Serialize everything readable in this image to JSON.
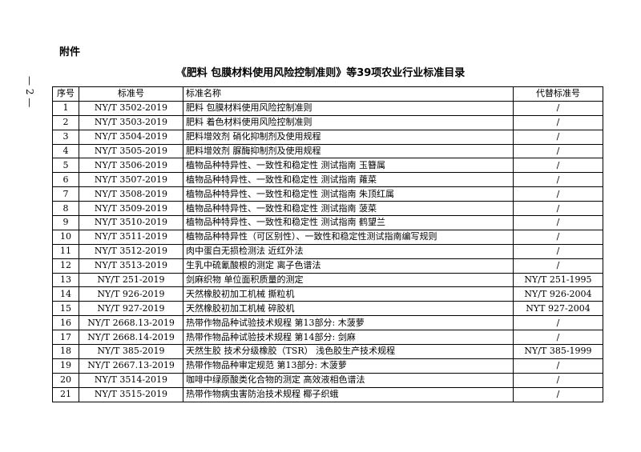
{
  "page_number": "— 2 —",
  "header": {
    "label": "附件",
    "title": "《肥料 包膜材料使用风险控制准则》等39项农业行业标准目录"
  },
  "table": {
    "columns": [
      "序号",
      "标准号",
      "标准名称",
      "代替标准号"
    ],
    "rows": [
      [
        "1",
        "NY/T 3502-2019",
        "肥料 包膜材料使用风险控制准则",
        "/"
      ],
      [
        "2",
        "NY/T 3503-2019",
        "肥料 着色材料使用风险控制准则",
        "/"
      ],
      [
        "3",
        "NY/T 3504-2019",
        "肥料增效剂  硝化抑制剂及使用规程",
        "/"
      ],
      [
        "4",
        "NY/T 3505-2019",
        "肥料增效剂  脲酶抑制剂及使用规程",
        "/"
      ],
      [
        "5",
        "NY/T 3506-2019",
        "植物品种特异性、一致性和稳定性 测试指南  玉簪属",
        "/"
      ],
      [
        "6",
        "NY/T 3507-2019",
        "植物品种特异性、一致性和稳定性 测试指南  蕹菜",
        "/"
      ],
      [
        "7",
        "NY/T 3508-2019",
        "植物品种特异性、一致性和稳定性 测试指南  朱顶红属",
        "/"
      ],
      [
        "8",
        "NY/T 3509-2019",
        "植物品种特异性、一致性和稳定性 测试指南  菠菜",
        "/"
      ],
      [
        "9",
        "NY/T 3510-2019",
        "植物品种特异性、一致性和稳定性 测试指南  鹤望兰",
        "/"
      ],
      [
        "10",
        "NY/T 3511-2019",
        "植物品种特异性（可区别性）、一致性和稳定性测试指南编写规则",
        "/"
      ],
      [
        "11",
        "NY/T 3512-2019",
        "肉中蛋白无损检测法  近红外法",
        "/"
      ],
      [
        "12",
        "NY/T 3513-2019",
        "生乳中硫氰酸根的测定 离子色谱法",
        "/"
      ],
      [
        "13",
        "NY/T 251-2019",
        "剑麻织物 单位面积质量的测定",
        "NY/T 251-1995"
      ],
      [
        "14",
        "NY/T 926-2019",
        "天然橡胶初加工机械  撕粒机",
        "NY/T 926-2004"
      ],
      [
        "15",
        "NY/T 927-2019",
        "天然橡胶初加工机械  碎胶机",
        "NYT 927-2004"
      ],
      [
        "16",
        "NY/T 2668.13-2019",
        "热带作物品种试验技术规程 第13部分: 木菠萝",
        "/"
      ],
      [
        "17",
        "NY/T 2668.14-2019",
        "热带作物品种试验技术规程 第14部分: 剑麻",
        "/"
      ],
      [
        "18",
        "NY/T 385-2019",
        "天然生胶 技术分级橡胶（TSR） 浅色胶生产技术规程",
        "NY/T 385-1999"
      ],
      [
        "19",
        "NY/T 2667.13-2019",
        "热带作物品种审定规范 第13部分: 木菠萝",
        "/"
      ],
      [
        "20",
        "NY/T 3514-2019",
        "咖啡中绿原酸类化合物的测定 高效液相色谱法",
        "/"
      ],
      [
        "21",
        "NY/T 3515-2019",
        "热带作物病虫害防治技术规程 椰子织蛾",
        "/"
      ]
    ]
  }
}
